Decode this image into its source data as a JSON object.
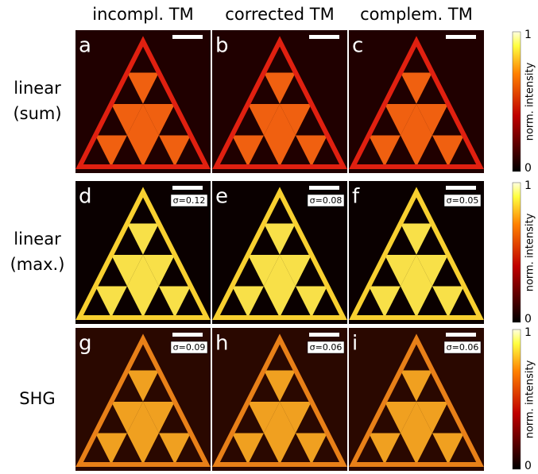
{
  "columns": [
    "incompl. TM",
    "corrected TM",
    "complem. TM"
  ],
  "rows": [
    {
      "label": [
        "linear",
        "(sum)"
      ],
      "panels": [
        {
          "letter": "a"
        },
        {
          "letter": "b"
        },
        {
          "letter": "c"
        }
      ]
    },
    {
      "label": [
        "linear",
        "(max.)"
      ],
      "panels": [
        {
          "letter": "d",
          "sigma": "σ=0.12"
        },
        {
          "letter": "e",
          "sigma": "σ=0.08"
        },
        {
          "letter": "f",
          "sigma": "σ=0.05"
        }
      ]
    },
    {
      "label": [
        "SHG"
      ],
      "panels": [
        {
          "letter": "g",
          "sigma": "σ=0.09"
        },
        {
          "letter": "h",
          "sigma": "σ=0.06"
        },
        {
          "letter": "i",
          "sigma": "σ=0.06"
        }
      ]
    }
  ],
  "colorbar": {
    "max": "1",
    "min": "0",
    "label": "norm. intensity"
  }
}
